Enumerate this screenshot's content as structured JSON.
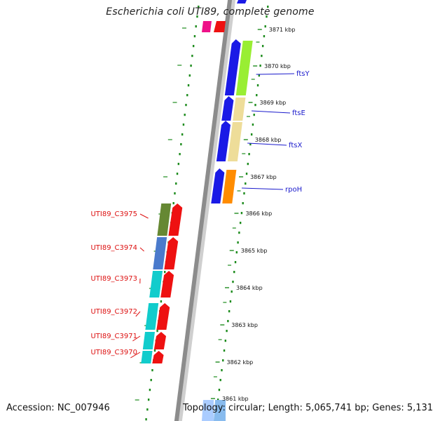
{
  "title": "Escherichia coli UTI89, complete genome",
  "footer": {
    "accession": "Accession: NC_007946",
    "info": "Topology: circular; Length: 5,065,741 bp; Genes: 5,131"
  },
  "colors": {
    "backbone": "#8c8c8c",
    "dotted_track": "#1e8c1e",
    "right_label": "#1a1acc",
    "left_label": "#dd1111",
    "forward_strand": "#1a1ae6",
    "reverse_strand": "#ee1111"
  },
  "ticks": [
    {
      "label": "3871 kbp"
    },
    {
      "label": "3870 kbp"
    },
    {
      "label": "3869 kbp"
    },
    {
      "label": "3868 kbp"
    },
    {
      "label": "3867 kbp"
    },
    {
      "label": "3866 kbp"
    },
    {
      "label": "3865 kbp"
    },
    {
      "label": "3864 kbp"
    },
    {
      "label": "3863 kbp"
    },
    {
      "label": "3862 kbp"
    },
    {
      "label": "3861 kbp"
    }
  ],
  "right_genes": [
    {
      "name": "ftsY",
      "strand": "forward",
      "cog_color": "#99ee33"
    },
    {
      "name": "ftsE",
      "strand": "forward",
      "cog_color": "#eedd99"
    },
    {
      "name": "ftsX",
      "strand": "forward",
      "cog_color": "#eedd99"
    },
    {
      "name": "rpoH",
      "strand": "forward",
      "cog_color": "#ff8c00"
    }
  ],
  "left_genes": [
    {
      "name": "UTI89_C3975",
      "strand": "reverse",
      "cog_color": "#668833"
    },
    {
      "name": "UTI89_C3974",
      "strand": "reverse",
      "cog_color": "#4a7acc"
    },
    {
      "name": "UTI89_C3973",
      "strand": "reverse",
      "cog_color": "#11cccc"
    },
    {
      "name": "UTI89_C3972",
      "strand": "reverse",
      "cog_color": "#11cccc"
    },
    {
      "name": "UTI89_C3971",
      "strand": "reverse",
      "cog_color": "#11cccc"
    },
    {
      "name": "UTI89_C3970",
      "strand": "reverse",
      "cog_color": "#11cccc"
    }
  ]
}
